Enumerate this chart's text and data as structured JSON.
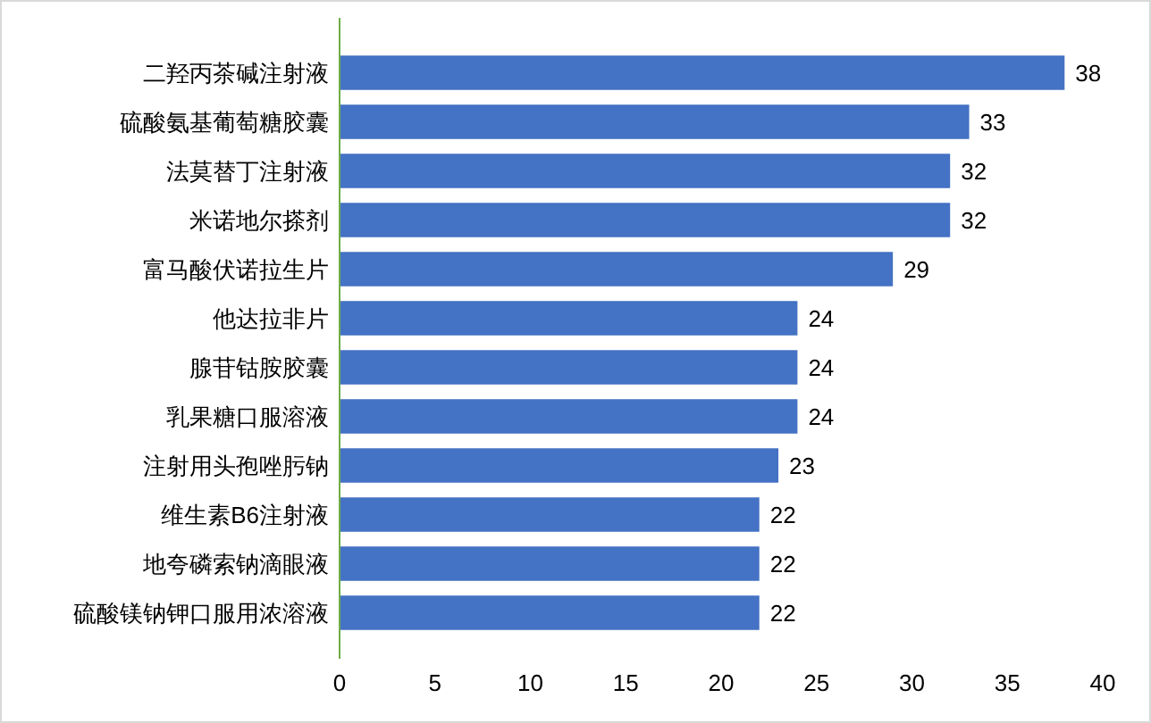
{
  "chart_data": {
    "type": "bar",
    "orientation": "horizontal",
    "categories": [
      "二羟丙茶碱注射液",
      "硫酸氨基葡萄糖胶囊",
      "法莫替丁注射液",
      "米诺地尔搽剂",
      "富马酸伏诺拉生片",
      "他达拉非片",
      "腺苷钴胺胶囊",
      "乳果糖口服溶液",
      "注射用头孢唑肟钠",
      "维生素B6注射液",
      "地夸磷索钠滴眼液",
      "硫酸镁钠钾口服用浓溶液"
    ],
    "values": [
      38,
      33,
      32,
      32,
      29,
      24,
      24,
      24,
      23,
      22,
      22,
      22
    ],
    "color": "#4472c4",
    "xlim": [
      0,
      40
    ],
    "xticks": [
      0,
      5,
      10,
      15,
      20,
      25,
      30,
      35,
      40
    ],
    "grid": false,
    "data_labels": true
  }
}
